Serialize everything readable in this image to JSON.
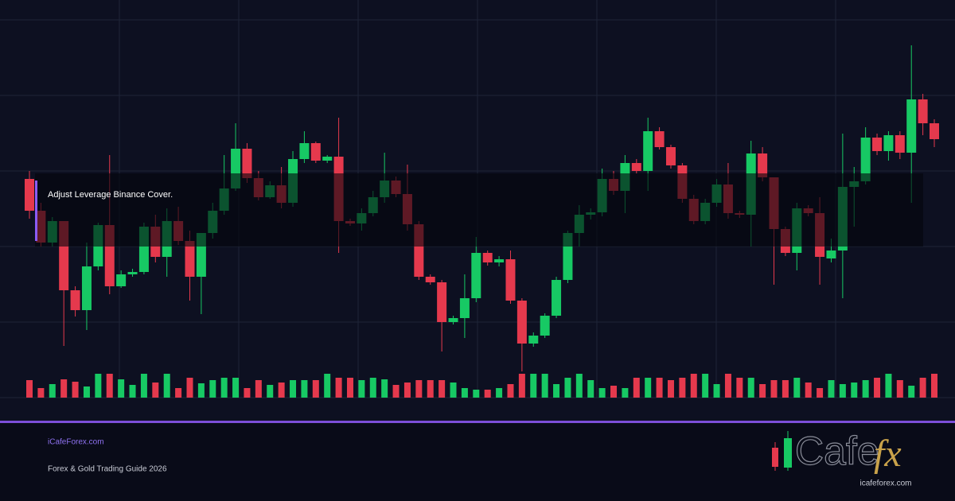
{
  "chart_data": {
    "type": "candlestick",
    "open": [
      275,
      235,
      195,
      222,
      135,
      110,
      165,
      217,
      140,
      155,
      158,
      215,
      177,
      222,
      197,
      152,
      207,
      235,
      263,
      313,
      276,
      252,
      267,
      245,
      300,
      320,
      298,
      303,
      222,
      219,
      232,
      252,
      273,
      256,
      218,
      152,
      145,
      95,
      100,
      125,
      182,
      170,
      174,
      122,
      68,
      78,
      103,
      148,
      207,
      230,
      233,
      275,
      260,
      295,
      285,
      335,
      315,
      292,
      250,
      222,
      245,
      268,
      232,
      230,
      307,
      277,
      212,
      182,
      238,
      232,
      175,
      185,
      265,
      272,
      327,
      310,
      330,
      308,
      375,
      345
    ],
    "high": [
      285,
      245,
      227,
      222,
      140,
      195,
      220,
      305,
      160,
      162,
      220,
      230,
      238,
      240,
      210,
      207,
      245,
      305,
      345,
      320,
      285,
      272,
      290,
      310,
      335,
      322,
      305,
      352,
      225,
      238,
      260,
      308,
      278,
      293,
      222,
      155,
      148,
      103,
      155,
      202,
      185,
      178,
      185,
      125,
      82,
      106,
      152,
      210,
      242,
      238,
      288,
      285,
      305,
      300,
      352,
      340,
      318,
      295,
      255,
      250,
      275,
      295,
      235,
      323,
      315,
      277,
      215,
      245,
      242,
      252,
      200,
      332,
      290,
      340,
      332,
      335,
      335,
      443,
      382,
      350
    ],
    "low": [
      225,
      190,
      190,
      65,
      102,
      85,
      160,
      130,
      138,
      152,
      155,
      170,
      152,
      192,
      122,
      105,
      200,
      230,
      260,
      270,
      248,
      250,
      238,
      240,
      295,
      295,
      295,
      182,
      216,
      210,
      228,
      245,
      252,
      210,
      148,
      142,
      58,
      92,
      75,
      120,
      166,
      165,
      118,
      33,
      64,
      75,
      100,
      144,
      190,
      224,
      228,
      255,
      232,
      282,
      260,
      312,
      288,
      245,
      218,
      218,
      240,
      225,
      226,
      190,
      272,
      142,
      178,
      160,
      228,
      142,
      170,
      125,
      215,
      268,
      305,
      298,
      300,
      245,
      330,
      315
    ],
    "close": [
      235,
      195,
      222,
      135,
      110,
      165,
      217,
      140,
      155,
      158,
      215,
      177,
      222,
      197,
      152,
      207,
      235,
      263,
      313,
      276,
      252,
      267,
      245,
      300,
      320,
      298,
      303,
      222,
      219,
      232,
      252,
      273,
      256,
      218,
      152,
      145,
      95,
      100,
      125,
      182,
      170,
      174,
      122,
      68,
      78,
      103,
      148,
      207,
      230,
      233,
      275,
      260,
      295,
      285,
      335,
      315,
      292,
      250,
      222,
      245,
      268,
      232,
      230,
      307,
      277,
      212,
      182,
      238,
      232,
      177,
      185,
      265,
      272,
      327,
      310,
      330,
      308,
      375,
      345,
      325
    ],
    "volume": [
      22,
      12,
      17,
      23,
      20,
      14,
      30,
      30,
      23,
      16,
      30,
      19,
      30,
      12,
      25,
      18,
      22,
      25,
      25,
      12,
      22,
      16,
      19,
      22,
      22,
      22,
      30,
      25,
      25,
      22,
      25,
      23,
      16,
      19,
      22,
      22,
      22,
      19,
      12,
      10,
      10,
      12,
      17,
      30,
      30,
      30,
      17,
      25,
      30,
      22,
      12,
      15,
      12,
      25,
      25,
      25,
      22,
      25,
      30,
      30,
      17,
      30,
      25,
      25,
      17,
      22,
      22,
      25,
      19,
      12,
      22,
      17,
      19,
      22,
      25,
      30,
      22,
      15,
      25,
      30
    ],
    "up_color": "#17c964",
    "down_color": "#e5394d"
  },
  "cover": {
    "caption": "Adjust Leverage Binance Cover."
  },
  "footer": {
    "site": "iCafeForex.com",
    "subtitle": "Forex & Gold Trading Guide 2026"
  },
  "logo": {
    "word": "Cafe",
    "accent": "fx",
    "url": "icafeforex.com"
  }
}
